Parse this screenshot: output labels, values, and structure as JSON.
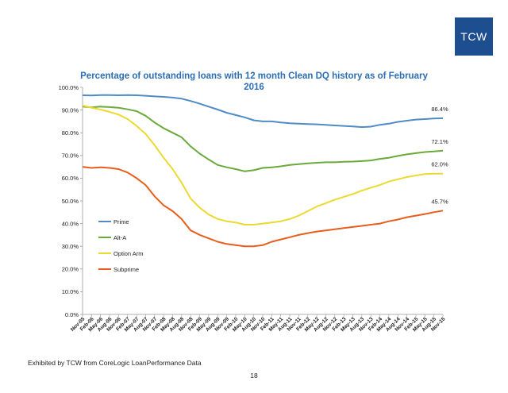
{
  "logo": {
    "text": "TCW",
    "color": "#1d4e8f"
  },
  "footer": {
    "source": "Exhibited by TCW from CoreLogic LoanPerformance Data",
    "page_number": "18"
  },
  "chart_data": {
    "type": "line",
    "title": "Percentage of outstanding loans with 12 month Clean DQ history as of  February 2016",
    "xlabel": "",
    "ylabel": "",
    "ylim": [
      0,
      100
    ],
    "y_ticks": [
      "0.0%",
      "10.0%",
      "20.0%",
      "30.0%",
      "40.0%",
      "50.0%",
      "60.0%",
      "70.0%",
      "80.0%",
      "90.0%",
      "100.0%"
    ],
    "x_tick_labels": [
      "Nov-05",
      "Feb-06",
      "May-06",
      "Aug-06",
      "Nov-06",
      "Feb-07",
      "May-07",
      "Aug-07",
      "Nov-07",
      "Feb-08",
      "May-08",
      "Aug-08",
      "Nov-08",
      "Feb-09",
      "May-09",
      "Aug-09",
      "Nov-09",
      "Feb-10",
      "May-10",
      "Aug-10",
      "Nov-10",
      "Feb-11",
      "May-11",
      "Aug-11",
      "Nov-11",
      "Feb-12",
      "May-12",
      "Aug-12",
      "Nov-12",
      "Feb-13",
      "May-13",
      "Aug-13",
      "Nov-13",
      "Feb-14",
      "May-14",
      "Aug-14",
      "Nov-14",
      "Feb-15",
      "May-15",
      "Aug-15",
      "Nov-15"
    ],
    "grid": false,
    "legend_position": "left-middle",
    "series": [
      {
        "name": "Prime",
        "color": "#4f8cc7",
        "values": [
          96.5,
          96.4,
          96.6,
          96.6,
          96.5,
          96.6,
          96.5,
          96.3,
          96.0,
          95.8,
          95.5,
          95.0,
          94.0,
          92.8,
          91.5,
          90.2,
          88.8,
          87.8,
          86.8,
          85.5,
          85.0,
          85.0,
          84.5,
          84.2,
          84.0,
          83.8,
          83.7,
          83.5,
          83.2,
          83.0,
          82.8,
          82.5,
          82.7,
          83.5,
          84.0,
          84.8,
          85.3,
          85.8,
          86.0,
          86.3,
          86.4
        ],
        "end_label": "86.4%"
      },
      {
        "name": "Alt-A",
        "color": "#6aaa3a",
        "values": [
          91.5,
          91.2,
          91.5,
          91.3,
          91.0,
          90.3,
          89.5,
          87.5,
          84.5,
          82.0,
          80.0,
          78.0,
          74.0,
          70.8,
          68.2,
          65.8,
          64.8,
          64.0,
          63.0,
          63.5,
          64.5,
          64.8,
          65.2,
          65.8,
          66.2,
          66.5,
          66.8,
          67.0,
          67.0,
          67.2,
          67.3,
          67.5,
          67.8,
          68.5,
          69.0,
          69.8,
          70.5,
          71.0,
          71.5,
          71.8,
          72.1
        ],
        "end_label": "72.1%"
      },
      {
        "name": "Option Arm",
        "color": "#ecd931",
        "values": [
          92.0,
          91.0,
          90.2,
          89.2,
          88.0,
          86.0,
          83.0,
          79.5,
          74.5,
          69.0,
          64.0,
          58.0,
          51.0,
          47.0,
          44.0,
          42.0,
          41.0,
          40.5,
          39.5,
          39.5,
          40.0,
          40.5,
          41.0,
          42.0,
          43.5,
          45.5,
          47.5,
          49.0,
          50.5,
          51.8,
          53.0,
          54.5,
          55.8,
          57.0,
          58.5,
          59.5,
          60.5,
          61.2,
          61.8,
          62.0,
          62.0
        ],
        "end_label": "62.0%"
      },
      {
        "name": "Subprime",
        "color": "#e85d1a",
        "values": [
          65.0,
          64.5,
          64.8,
          64.5,
          64.0,
          62.5,
          60.0,
          57.0,
          52.0,
          48.0,
          45.5,
          42.0,
          37.0,
          35.0,
          33.5,
          32.0,
          31.0,
          30.5,
          30.0,
          30.0,
          30.5,
          32.0,
          33.0,
          34.0,
          35.0,
          35.8,
          36.5,
          37.0,
          37.5,
          38.0,
          38.5,
          39.0,
          39.5,
          40.0,
          41.0,
          41.8,
          42.8,
          43.5,
          44.2,
          45.0,
          45.7
        ],
        "end_label": "45.7%"
      }
    ]
  }
}
